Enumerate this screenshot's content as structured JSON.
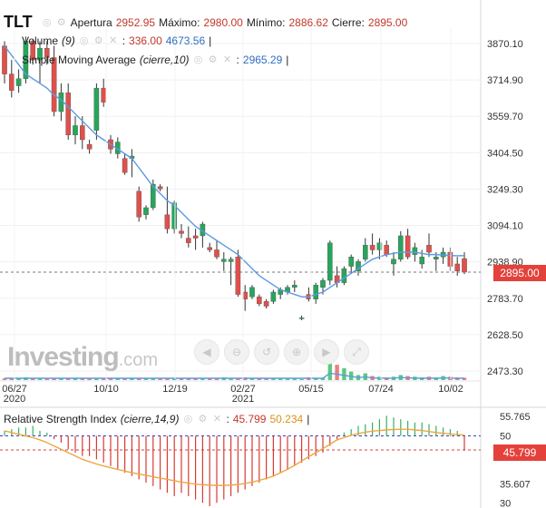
{
  "header": {
    "symbol": "TLT",
    "open_label": "Apertura",
    "open_value": "2952.95",
    "high_label": "Máximo:",
    "high_value": "2980.00",
    "low_label": "Mínimo:",
    "low_value": "2886.62",
    "close_label": "Cierre:",
    "close_value": "2895.00"
  },
  "volume_legend": {
    "label": "Volume",
    "param": "(9)",
    "value1": "336.00",
    "value2": "4673.56"
  },
  "sma_legend": {
    "label": "Simple Moving Average",
    "param": "(cierre,10)",
    "value": "2965.29"
  },
  "rsi_legend": {
    "label": "Relative Strength Index",
    "param": "(cierre,14,9)",
    "value1": "45.799",
    "value2": "50.234"
  },
  "price_tag": "2895.00",
  "rsi_tag": "45.799",
  "watermark": {
    "brand": "Investing",
    "suffix": ".com"
  },
  "zoom_controls": [
    "◀",
    "⊖",
    "↺",
    "⊕",
    "▶",
    "⤢"
  ],
  "colors": {
    "up": "#26a65b",
    "down": "#e0504b",
    "sma": "#5b9ae3",
    "rsi_signal": "#f0a640",
    "accent": "#e4413b"
  },
  "chart_data": {
    "type": "candlestick",
    "y_ticks": [
      "3870.10",
      "3714.90",
      "3559.70",
      "3404.50",
      "3249.30",
      "3094.10",
      "2938.90",
      "2783.70",
      "2628.50",
      "2473.30"
    ],
    "x_ticks": [
      {
        "top": "06/27",
        "bottom": "2020"
      },
      {
        "top": "10/10",
        "bottom": ""
      },
      {
        "top": "12/19",
        "bottom": ""
      },
      {
        "top": "02/27",
        "bottom": "2021"
      },
      {
        "top": "05/15",
        "bottom": ""
      },
      {
        "top": "07/24",
        "bottom": ""
      },
      {
        "top": "10/02",
        "bottom": ""
      }
    ],
    "ylim": [
      2420,
      3920
    ],
    "candles": [
      [
        3860,
        3880,
        3700,
        3740
      ],
      [
        3740,
        3800,
        3640,
        3670
      ],
      [
        3690,
        3760,
        3660,
        3720
      ],
      [
        3720,
        3900,
        3700,
        3880
      ],
      [
        3880,
        3890,
        3780,
        3800
      ],
      [
        3800,
        3880,
        3700,
        3850
      ],
      [
        3850,
        3880,
        3780,
        3810
      ],
      [
        3810,
        3860,
        3560,
        3580
      ],
      [
        3580,
        3700,
        3540,
        3660
      ],
      [
        3660,
        3700,
        3460,
        3480
      ],
      [
        3480,
        3560,
        3440,
        3520
      ],
      [
        3520,
        3560,
        3420,
        3460
      ],
      [
        3440,
        3460,
        3400,
        3420
      ],
      [
        3500,
        3700,
        3460,
        3680
      ],
      [
        3680,
        3720,
        3600,
        3620
      ],
      [
        3460,
        3480,
        3400,
        3420
      ],
      [
        3400,
        3470,
        3380,
        3450
      ],
      [
        3380,
        3400,
        3310,
        3320
      ],
      [
        3380,
        3420,
        3300,
        3390
      ],
      [
        3240,
        3260,
        3110,
        3130
      ],
      [
        3140,
        3180,
        3120,
        3170
      ],
      [
        3170,
        3290,
        3160,
        3270
      ],
      [
        3260,
        3270,
        3240,
        3250
      ],
      [
        3140,
        3260,
        3060,
        3080
      ],
      [
        3080,
        3200,
        3060,
        3190
      ],
      [
        3070,
        3100,
        3040,
        3060
      ],
      [
        3040,
        3090,
        3000,
        3020
      ],
      [
        3050,
        3080,
        2990,
        3040
      ],
      [
        3050,
        3110,
        3000,
        3100
      ],
      [
        3000,
        3020,
        2980,
        2990
      ],
      [
        2990,
        3030,
        2950,
        2960
      ],
      [
        2940,
        2980,
        2900,
        2950
      ],
      [
        2940,
        2960,
        2840,
        2950
      ],
      [
        2960,
        2990,
        2790,
        2800
      ],
      [
        2810,
        2840,
        2730,
        2780
      ],
      [
        2790,
        2840,
        2780,
        2830
      ],
      [
        2790,
        2800,
        2750,
        2760
      ],
      [
        2770,
        2780,
        2740,
        2750
      ],
      [
        2770,
        2820,
        2760,
        2810
      ],
      [
        2800,
        2830,
        2780,
        2820
      ],
      [
        2810,
        2840,
        2800,
        2830
      ],
      [
        2830,
        2860,
        2810,
        2840
      ],
      [
        2700,
        2710,
        2690,
        2700
      ],
      [
        2800,
        2830,
        2770,
        2780
      ],
      [
        2780,
        2850,
        2760,
        2840
      ],
      [
        2830,
        2870,
        2800,
        2860
      ],
      [
        2860,
        3030,
        2840,
        3020
      ],
      [
        2880,
        2920,
        2830,
        2850
      ],
      [
        2850,
        2920,
        2840,
        2910
      ],
      [
        2920,
        2970,
        2890,
        2960
      ],
      [
        2900,
        2950,
        2880,
        2940
      ],
      [
        2950,
        3040,
        2940,
        3010
      ],
      [
        3010,
        3060,
        2970,
        2990
      ],
      [
        2990,
        3040,
        2950,
        3020
      ],
      [
        3010,
        3030,
        2960,
        2970
      ],
      [
        2930,
        2980,
        2880,
        2950
      ],
      [
        2950,
        3070,
        2940,
        3050
      ],
      [
        3050,
        3080,
        2950,
        2960
      ],
      [
        2970,
        3020,
        2940,
        3000
      ],
      [
        2930,
        2990,
        2910,
        2960
      ],
      [
        3010,
        3060,
        2960,
        2980
      ],
      [
        2950,
        2980,
        2900,
        2960
      ],
      [
        2960,
        3000,
        2930,
        2980
      ],
      [
        2980,
        3000,
        2900,
        2920
      ],
      [
        2930,
        2960,
        2880,
        2900
      ],
      [
        2952.95,
        2980,
        2886.62,
        2895
      ]
    ],
    "sma": [
      3860,
      3820,
      3780,
      3740,
      3720,
      3700,
      3680,
      3650,
      3630,
      3600,
      3570,
      3540,
      3510,
      3480,
      3460,
      3440,
      3420,
      3400,
      3380,
      3340,
      3300,
      3260,
      3230,
      3200,
      3180,
      3150,
      3120,
      3090,
      3070,
      3050,
      3030,
      3010,
      2990,
      2970,
      2940,
      2910,
      2880,
      2860,
      2840,
      2820,
      2810,
      2800,
      2790,
      2790,
      2800,
      2810,
      2830,
      2850,
      2870,
      2890,
      2910,
      2930,
      2950,
      2960,
      2970,
      2975,
      2980,
      2980,
      2980,
      2975,
      2970,
      2970,
      2968,
      2966,
      2965,
      2965.29
    ],
    "volume": [
      0.05,
      0.05,
      0.04,
      0.08,
      0.05,
      0.05,
      0.05,
      0.06,
      0.04,
      0.05,
      0.04,
      0.05,
      0.04,
      0.06,
      0.04,
      0.04,
      0.04,
      0.04,
      0.05,
      0.05,
      0.04,
      0.05,
      0.04,
      0.05,
      0.05,
      0.04,
      0.04,
      0.06,
      0.05,
      0.04,
      0.05,
      0.08,
      0.05,
      0.06,
      0.08,
      0.06,
      0.05,
      0.05,
      0.06,
      0.04,
      0.05,
      0.05,
      0.03,
      0.08,
      0.06,
      0.07,
      0.55,
      0.45,
      0.35,
      0.25,
      0.15,
      0.2,
      0.12,
      0.1,
      0.08,
      0.1,
      0.15,
      0.12,
      0.1,
      0.08,
      0.1,
      0.08,
      0.12,
      0.1,
      0.08,
      0.07
    ],
    "rsi_ticks": [
      "55.765",
      "50",
      "35.607",
      "30"
    ],
    "rsi_ylim": [
      29,
      58
    ],
    "rsi_signal": [
      51.5,
      51,
      50.5,
      50,
      49.5,
      48.8,
      48,
      47,
      46,
      45,
      44,
      43,
      42.3,
      41.6,
      41,
      40.5,
      40,
      39.5,
      39,
      38.6,
      38.2,
      37.8,
      37.4,
      37,
      36.6,
      36.2,
      35.9,
      35.6,
      35.4,
      35.3,
      35.2,
      35.2,
      35.3,
      35.5,
      35.8,
      36.2,
      36.7,
      37.3,
      38,
      39,
      40,
      41.2,
      42.5,
      43.8,
      45,
      46.2,
      47.5,
      48.8,
      49.5,
      50.2,
      50.7,
      51.1,
      51.4,
      51.6,
      51.8,
      51.9,
      52,
      52,
      51.8,
      51.6,
      51.3,
      51,
      50.8,
      50.6,
      50.4,
      50.234
    ],
    "rsi_hist": [
      1.5,
      2,
      2.5,
      2.5,
      3,
      1.5,
      1,
      -1,
      -2,
      -4,
      -5,
      -6,
      -6,
      -7,
      -8,
      -9,
      -10,
      -11,
      -12,
      -13,
      -14,
      -15,
      -16,
      -17,
      -18,
      -17,
      -18,
      -19,
      -20,
      -21,
      -20,
      -19,
      -18,
      -17,
      -16,
      -15,
      -14,
      -13,
      -12,
      -11,
      -10,
      -9,
      -8,
      -7,
      -6,
      -5,
      -3,
      -1,
      1,
      2,
      3,
      3.5,
      4,
      5,
      6,
      5.5,
      5,
      4.5,
      4,
      4,
      3.5,
      3,
      2.5,
      2,
      1.5,
      -4.4
    ]
  }
}
